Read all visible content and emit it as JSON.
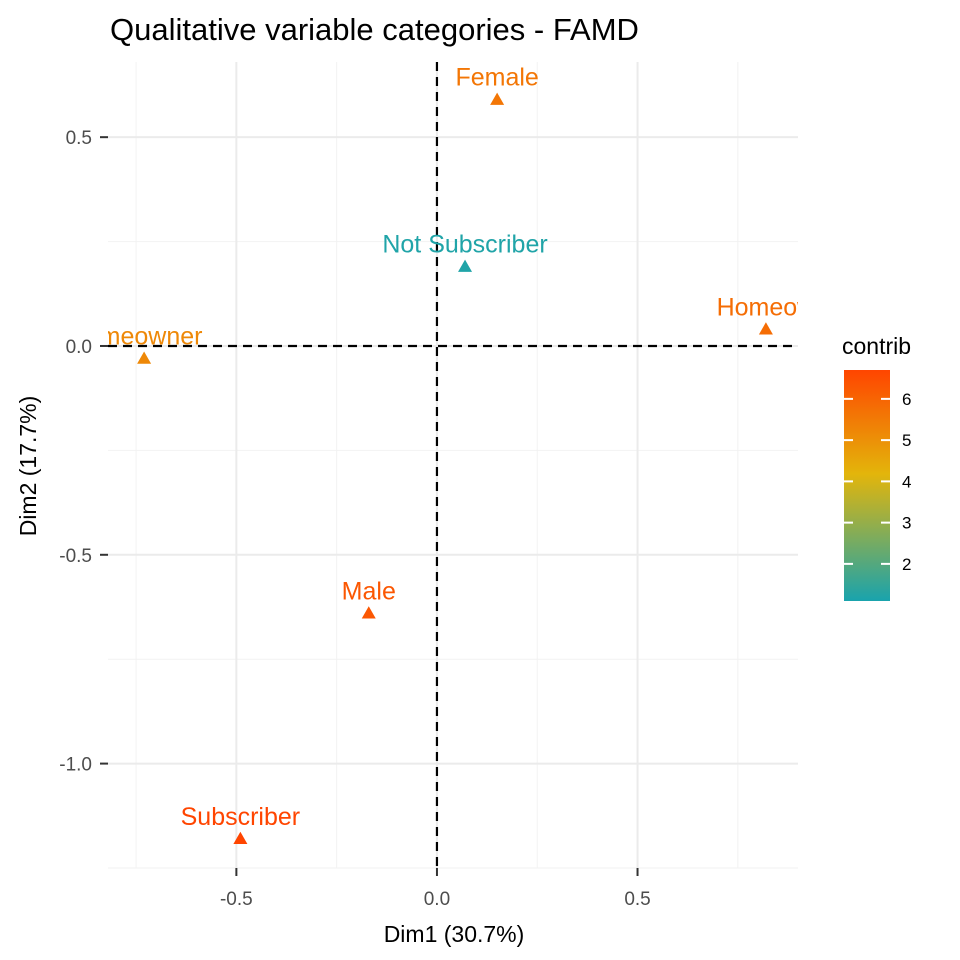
{
  "chart_data": {
    "type": "scatter",
    "title": "Qualitative variable categories - FAMD",
    "xlabel": "Dim1 (30.7%)",
    "ylabel": "Dim2 (17.7%)",
    "xlim": [
      -0.82,
      0.9
    ],
    "ylim": [
      -1.25,
      0.68
    ],
    "x_ticks": [
      -0.5,
      0.0,
      0.5
    ],
    "x_tick_labels": [
      "-0.5",
      "0.0",
      "0.5"
    ],
    "y_ticks": [
      0.5,
      0.0,
      -0.5,
      -1.0
    ],
    "y_tick_labels": [
      "0.5",
      "0.0",
      "-0.5",
      "-1.0"
    ],
    "grid": true,
    "reference_lines": {
      "x": 0,
      "y": 0,
      "style": "dashed"
    },
    "points": [
      {
        "label": "Female",
        "x": 0.15,
        "y": 0.59,
        "contrib": 5.6
      },
      {
        "label": "Not Subscriber",
        "x": 0.07,
        "y": 0.19,
        "contrib": 1.2
      },
      {
        "label": "Homeow",
        "x": 0.82,
        "y": 0.04,
        "contrib": 5.8
      },
      {
        "label": "omeowner",
        "x": -0.73,
        "y": -0.03,
        "contrib": 5.2
      },
      {
        "label": "Male",
        "x": -0.17,
        "y": -0.64,
        "contrib": 6.3
      },
      {
        "label": "Subscriber",
        "x": -0.49,
        "y": -1.18,
        "contrib": 6.7
      }
    ],
    "legend": {
      "title": "contrib",
      "position": "right",
      "range": [
        1.1,
        6.7
      ],
      "ticks": [
        2,
        3,
        4,
        5,
        6
      ],
      "tick_labels": [
        "2",
        "3",
        "4",
        "5",
        "6"
      ],
      "gradient_colors": [
        "#19a3ad",
        "#e3b50b",
        "#ff4500"
      ]
    }
  }
}
